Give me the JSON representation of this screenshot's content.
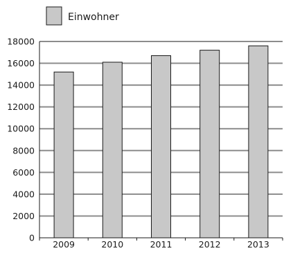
{
  "chart_data": {
    "type": "bar",
    "title": "",
    "xlabel": "",
    "ylabel": "",
    "categories": [
      "2009",
      "2010",
      "2011",
      "2012",
      "2013"
    ],
    "series": [
      {
        "name": "Einwohner",
        "values": [
          15200,
          16100,
          16700,
          17200,
          17600
        ]
      }
    ],
    "ylim": [
      0,
      18000
    ],
    "yticks": [
      0,
      2000,
      4000,
      6000,
      8000,
      10000,
      12000,
      14000,
      16000,
      18000
    ],
    "grid": true,
    "legend_position": "top-left",
    "colors": {
      "bar_fill": "#c8c8c8",
      "bar_stroke": "#1a1a1a",
      "grid": "#8c8c8c",
      "axis": "#1a1a1a"
    }
  }
}
